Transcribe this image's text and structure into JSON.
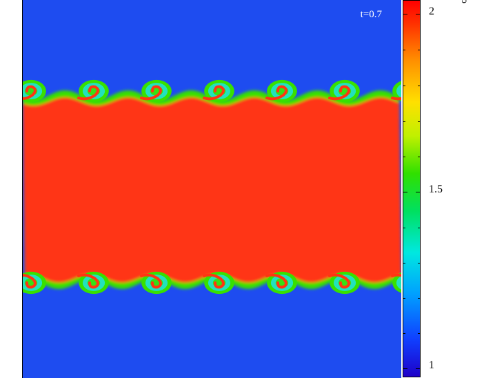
{
  "figure": {
    "time_label": "t=0.7",
    "colorbar": {
      "title": "ρ",
      "tick_labels": [
        "2",
        "1.5",
        "1"
      ]
    },
    "colors": {
      "low_density": "#1e4cf0",
      "high_density": "#ff3412",
      "vortex_core": "#22e0c8",
      "vortex_edge": "#38e000"
    }
  }
}
